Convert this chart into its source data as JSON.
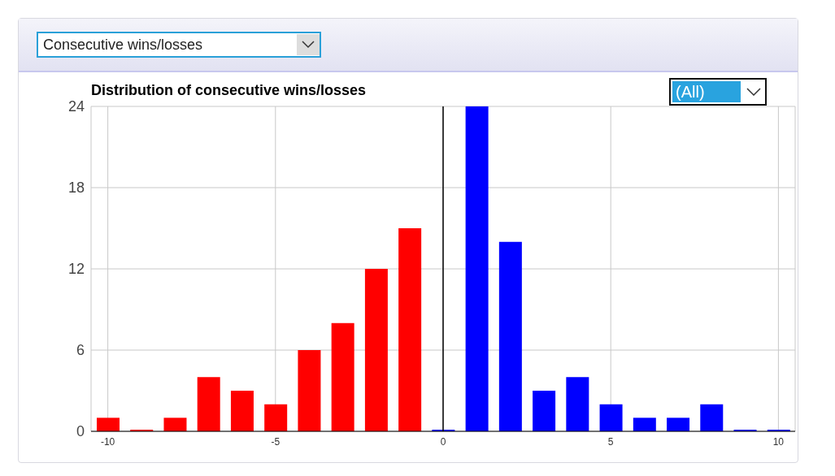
{
  "chart_data": {
    "type": "bar",
    "title": "Distribution of consecutive wins/losses",
    "annotations": [
      "Consecutive wins/losses",
      "(All)"
    ],
    "x": [
      -10,
      -9,
      -8,
      -7,
      -6,
      -5,
      -4,
      -3,
      -2,
      -1,
      0,
      1,
      2,
      3,
      4,
      5,
      6,
      7,
      8,
      9,
      10
    ],
    "values": [
      1,
      0,
      1,
      4,
      3,
      2,
      6,
      8,
      12,
      15,
      0,
      24,
      14,
      3,
      4,
      2,
      1,
      1,
      2,
      0,
      0
    ],
    "colors": [
      "#ff0000",
      "#ff0000",
      "#ff0000",
      "#ff0000",
      "#ff0000",
      "#ff0000",
      "#ff0000",
      "#ff0000",
      "#ff0000",
      "#ff0000",
      "#0000ff",
      "#0000ff",
      "#0000ff",
      "#0000ff",
      "#0000ff",
      "#0000ff",
      "#0000ff",
      "#0000ff",
      "#0000ff",
      "#0000ff",
      "#0000ff"
    ],
    "xlim": [
      -10.5,
      10.5
    ],
    "xticks": [
      -10,
      -5,
      0,
      5,
      10
    ],
    "ylim": [
      0,
      24
    ],
    "yticks": [
      0,
      6,
      12,
      18,
      24
    ],
    "ref_lines": [
      {
        "axis": "x",
        "value": 0,
        "color": "#000000"
      }
    ],
    "grid": true
  }
}
